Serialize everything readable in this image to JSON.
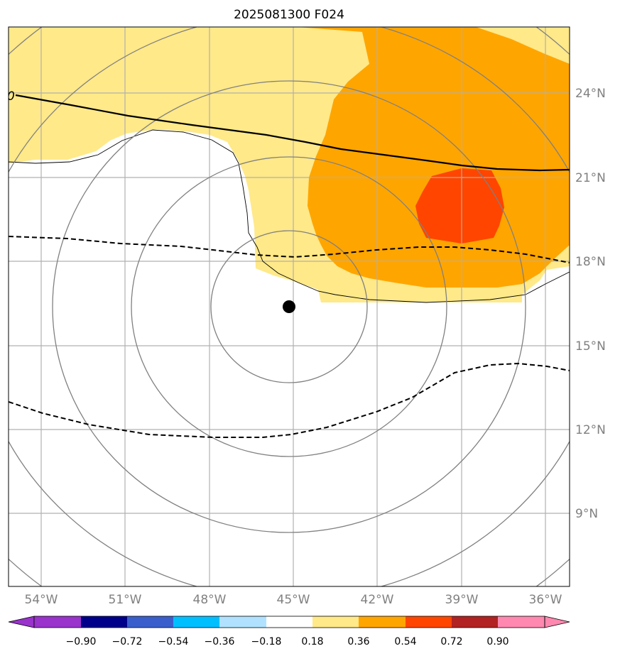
{
  "title": "2025081300 F024",
  "map": {
    "lon_range": [
      -55.5,
      -35.5
    ],
    "lat_range": [
      6.0,
      26.0
    ],
    "lon_ticks": [
      {
        "value": -54,
        "label": "54°W"
      },
      {
        "value": -51,
        "label": "51°W"
      },
      {
        "value": -48,
        "label": "48°W"
      },
      {
        "value": -45,
        "label": "45°W"
      },
      {
        "value": -42,
        "label": "42°W"
      },
      {
        "value": -39,
        "label": "39°W"
      },
      {
        "value": -36,
        "label": "36°W"
      }
    ],
    "lat_ticks": [
      {
        "value": 24,
        "label": "24°N"
      },
      {
        "value": 21,
        "label": "21°N"
      },
      {
        "value": 18,
        "label": "18°N"
      },
      {
        "value": 15,
        "label": "15°N"
      },
      {
        "value": 12,
        "label": "12°N"
      },
      {
        "value": 9,
        "label": "9°N"
      }
    ],
    "center_marker": {
      "lon": -45.15,
      "lat": 16.4
    },
    "contour_label": "0"
  },
  "colorbar": {
    "colors": [
      "#9933cc",
      "#00008b",
      "#3a5fcd",
      "#00bfff",
      "#b0e2ff",
      "#ffffff",
      "#ffe989",
      "#ffa500",
      "#ff4500",
      "#b22222",
      "#ff88b0"
    ],
    "labels": [
      "−0.90",
      "−0.72",
      "−0.54",
      "−0.36",
      "−0.18",
      "0.18",
      "0.36",
      "0.54",
      "0.72",
      "0.90"
    ]
  },
  "colors": {
    "fill_light": "#ffe989",
    "fill_orange": "#ffa500",
    "fill_red": "#ff4500",
    "grid": "#b0b0b0",
    "circle": "#808080",
    "tick_label": "#808080"
  }
}
